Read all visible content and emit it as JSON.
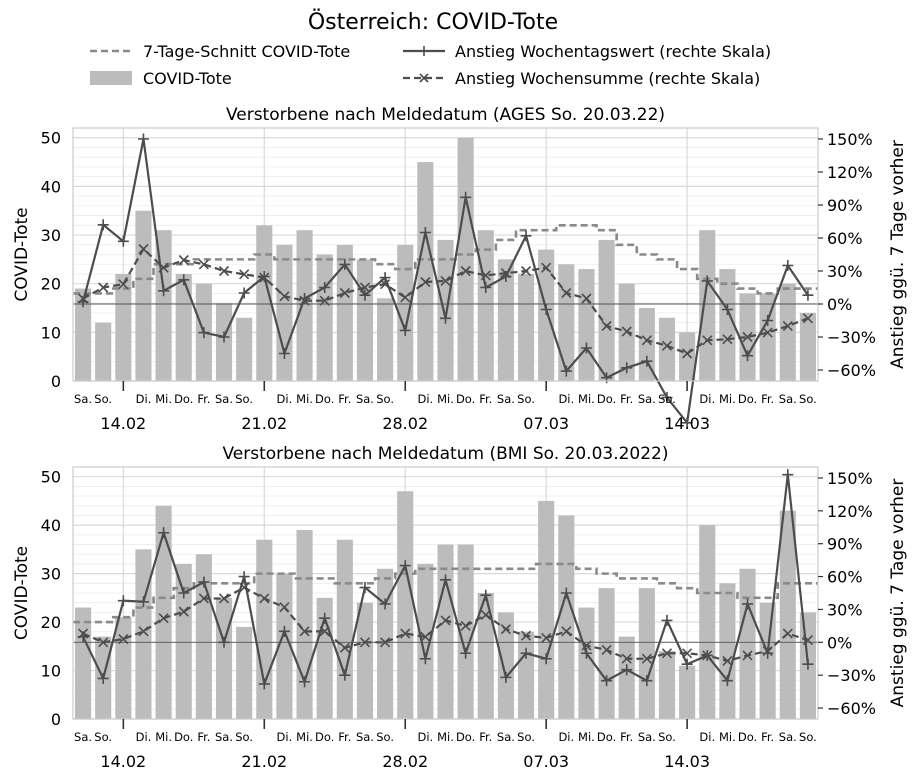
{
  "figure": {
    "title": "Österreich: COVID-Tote",
    "legend": {
      "avg": "7-Tage-Schnitt COVID-Tote",
      "bars": "COVID-Tote",
      "weekday_rise": "Anstieg Wochentagswert (rechte Skala)",
      "week_rise": "Anstieg Wochensumme (rechte Skala)"
    },
    "colors": {
      "bars": "#bcbcbc",
      "avg": "#8a8a8a",
      "weekday_rise": "#4d4d4d",
      "week_rise": "#4d4d4d",
      "grid": "#d9d9d9",
      "zero_line": "#555555"
    }
  },
  "chart_data": [
    {
      "type": "bar",
      "title": "Verstorbene nach Meldedatum (AGES So. 20.03.22)",
      "ylabel": "COVID-Tote",
      "y2label": "Anstieg ggü. 7 Tage vorher",
      "ylim": [
        0,
        52
      ],
      "yticks": [
        0,
        10,
        20,
        30,
        40,
        50
      ],
      "y2lim": [
        -70,
        160
      ],
      "y2ticks": [
        -60,
        -30,
        0,
        30,
        60,
        90,
        120,
        150
      ],
      "y2ticklabels": [
        "−60%",
        "−30%",
        "0%",
        "30%",
        "60%",
        "90%",
        "120%",
        "150%"
      ],
      "x": [
        "2022-02-12",
        "2022-02-13",
        "2022-02-14",
        "2022-02-15",
        "2022-02-16",
        "2022-02-17",
        "2022-02-18",
        "2022-02-19",
        "2022-02-20",
        "2022-02-21",
        "2022-02-22",
        "2022-02-23",
        "2022-02-24",
        "2022-02-25",
        "2022-02-26",
        "2022-02-27",
        "2022-02-28",
        "2022-03-01",
        "2022-03-02",
        "2022-03-03",
        "2022-03-04",
        "2022-03-05",
        "2022-03-06",
        "2022-03-07",
        "2022-03-08",
        "2022-03-09",
        "2022-03-10",
        "2022-03-11",
        "2022-03-12",
        "2022-03-13",
        "2022-03-14",
        "2022-03-15",
        "2022-03-16",
        "2022-03-17",
        "2022-03-18",
        "2022-03-19",
        "2022-03-20"
      ],
      "day_labels": [
        "Sa.",
        "So.",
        "",
        "Di.",
        "Mi.",
        "Do.",
        "Fr.",
        "Sa.",
        "So.",
        "",
        "Di.",
        "Mi.",
        "Do.",
        "Fr.",
        "Sa.",
        "So.",
        "",
        "Di.",
        "Mi.",
        "Do.",
        "Fr.",
        "Sa.",
        "So.",
        "",
        "Di.",
        "Mi.",
        "Do.",
        "Fr.",
        "Sa.",
        "So.",
        "",
        "Di.",
        "Mi.",
        "Do.",
        "Fr.",
        "Sa.",
        "So."
      ],
      "week_labels": [
        {
          "index": 2,
          "label": "14.02"
        },
        {
          "index": 9,
          "label": "21.02"
        },
        {
          "index": 16,
          "label": "28.02"
        },
        {
          "index": 23,
          "label": "07.03"
        },
        {
          "index": 30,
          "label": "14.03"
        }
      ],
      "series": [
        {
          "name": "COVID-Tote",
          "kind": "bar",
          "values": [
            19,
            12,
            22,
            35,
            31,
            22,
            20,
            16,
            13,
            32,
            28,
            31,
            26,
            28,
            25,
            17,
            28,
            45,
            29,
            50,
            31,
            25,
            22,
            27,
            24,
            23,
            29,
            20,
            15,
            13,
            10,
            31,
            23,
            18,
            18,
            20,
            14
          ]
        },
        {
          "name": "7-Tage-Schnitt COVID-Tote",
          "kind": "step",
          "axis": "left",
          "values": [
            18,
            18,
            19,
            21,
            24,
            24,
            25,
            25,
            25,
            26,
            25,
            25,
            25,
            25,
            25,
            24,
            23,
            25,
            25,
            26,
            27,
            29,
            31,
            31,
            32,
            32,
            31,
            28,
            26,
            25,
            23,
            21,
            20,
            19,
            18,
            19,
            19
          ]
        },
        {
          "name": "Anstieg Wochentagswert (rechte Skala)",
          "kind": "line",
          "axis": "right",
          "values": [
            2,
            72,
            57,
            150,
            12,
            22,
            -26,
            -30,
            10,
            25,
            -45,
            5,
            15,
            36,
            8,
            24,
            -24,
            65,
            -13,
            97,
            15,
            25,
            62,
            -5,
            -61,
            -40,
            -67,
            -58,
            -52,
            -85,
            -108,
            21,
            -5,
            -47,
            -15,
            35,
            8
          ]
        },
        {
          "name": "Anstieg Wochensumme (rechte Skala)",
          "kind": "line",
          "axis": "right",
          "values": [
            5,
            15,
            18,
            50,
            33,
            40,
            36,
            30,
            27,
            24,
            7,
            3,
            3,
            10,
            15,
            18,
            6,
            20,
            21,
            30,
            26,
            28,
            30,
            33,
            10,
            5,
            -20,
            -25,
            -33,
            -38,
            -45,
            -33,
            -32,
            -30,
            -26,
            -20,
            -13
          ]
        }
      ]
    },
    {
      "type": "bar",
      "title": "Verstorbene nach Meldedatum (BMI So. 20.03.2022)",
      "ylabel": "COVID-Tote",
      "y2label": "Anstieg ggü. 7 Tage vorher",
      "ylim": [
        0,
        52
      ],
      "yticks": [
        0,
        10,
        20,
        30,
        40,
        50
      ],
      "y2lim": [
        -70,
        160
      ],
      "y2ticks": [
        -60,
        -30,
        0,
        30,
        60,
        90,
        120,
        150
      ],
      "y2ticklabels": [
        "−60%",
        "−30%",
        "0%",
        "30%",
        "60%",
        "90%",
        "120%",
        "150%"
      ],
      "x": [
        "2022-02-12",
        "2022-02-13",
        "2022-02-14",
        "2022-02-15",
        "2022-02-16",
        "2022-02-17",
        "2022-02-18",
        "2022-02-19",
        "2022-02-20",
        "2022-02-21",
        "2022-02-22",
        "2022-02-23",
        "2022-02-24",
        "2022-02-25",
        "2022-02-26",
        "2022-02-27",
        "2022-02-28",
        "2022-03-01",
        "2022-03-02",
        "2022-03-03",
        "2022-03-04",
        "2022-03-05",
        "2022-03-06",
        "2022-03-07",
        "2022-03-08",
        "2022-03-09",
        "2022-03-10",
        "2022-03-11",
        "2022-03-12",
        "2022-03-13",
        "2022-03-14",
        "2022-03-15",
        "2022-03-16",
        "2022-03-17",
        "2022-03-18",
        "2022-03-19",
        "2022-03-20"
      ],
      "day_labels": [
        "Sa.",
        "So.",
        "",
        "Di.",
        "Mi.",
        "Do.",
        "Fr.",
        "Sa.",
        "So.",
        "",
        "Di.",
        "Mi.",
        "Do.",
        "Fr.",
        "Sa.",
        "So.",
        "",
        "Di.",
        "Mi.",
        "Do.",
        "Fr.",
        "Sa.",
        "So.",
        "",
        "Di.",
        "Mi.",
        "Do.",
        "Fr.",
        "Sa.",
        "So.",
        "",
        "Di.",
        "Mi.",
        "Do.",
        "Fr.",
        "Sa.",
        "So."
      ],
      "week_labels": [
        {
          "index": 2,
          "label": "14.02"
        },
        {
          "index": 9,
          "label": "21.02"
        },
        {
          "index": 16,
          "label": "28.02"
        },
        {
          "index": 23,
          "label": "07.03"
        },
        {
          "index": 30,
          "label": "14.03"
        }
      ],
      "series": [
        {
          "name": "COVID-Tote",
          "kind": "bar",
          "values": [
            23,
            17,
            21,
            35,
            44,
            32,
            34,
            25,
            19,
            37,
            30,
            39,
            25,
            37,
            24,
            31,
            47,
            32,
            36,
            36,
            26,
            22,
            18,
            45,
            42,
            23,
            27,
            17,
            27,
            14,
            11,
            40,
            28,
            31,
            24,
            43,
            22
          ]
        },
        {
          "name": "7-Tage-Schnitt COVID-Tote",
          "kind": "step",
          "axis": "left",
          "values": [
            20,
            20,
            21,
            23,
            25,
            27,
            28,
            28,
            28,
            30,
            30,
            29,
            29,
            28,
            28,
            29,
            30,
            31,
            31,
            31,
            31,
            31,
            31,
            32,
            32,
            31,
            30,
            29,
            29,
            28,
            27,
            26,
            26,
            25,
            25,
            28,
            28
          ]
        },
        {
          "name": "Anstieg Wochentagswert (rechte Skala)",
          "kind": "line",
          "axis": "right",
          "values": [
            5,
            -33,
            38,
            37,
            100,
            45,
            55,
            0,
            60,
            -38,
            10,
            -36,
            22,
            -30,
            50,
            35,
            70,
            -15,
            57,
            -10,
            43,
            -32,
            -10,
            -15,
            45,
            -10,
            -35,
            -25,
            -35,
            20,
            -20,
            -12,
            -35,
            35,
            -10,
            153,
            -20
          ]
        },
        {
          "name": "Anstieg Wochensumme (rechte Skala)",
          "kind": "line",
          "axis": "right",
          "values": [
            8,
            0,
            3,
            10,
            22,
            28,
            40,
            40,
            50,
            40,
            32,
            10,
            10,
            -5,
            0,
            0,
            8,
            5,
            20,
            15,
            25,
            12,
            6,
            4,
            10,
            -3,
            -7,
            -15,
            -15,
            -10,
            -10,
            -12,
            -17,
            -12,
            -8,
            8,
            2
          ]
        }
      ]
    }
  ]
}
